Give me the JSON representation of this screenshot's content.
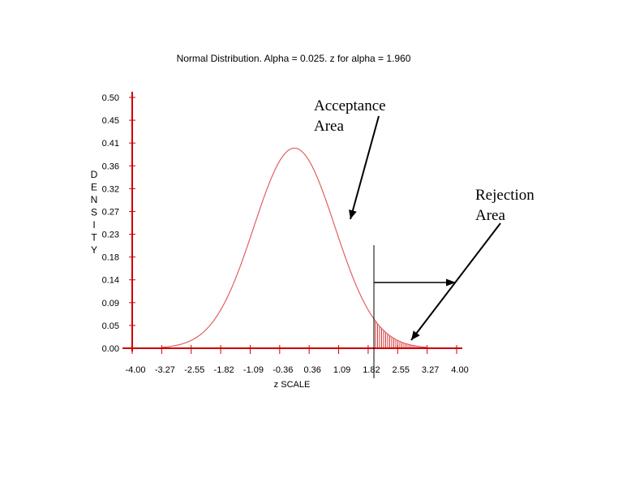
{
  "chart_data": {
    "type": "line",
    "title": "Normal Distribution. Alpha = 0.025. z for alpha = 1.960",
    "xlabel": "z SCALE",
    "ylabel": "DENSITY",
    "xlim": [
      -4.0,
      4.0
    ],
    "ylim": [
      0.0,
      0.5
    ],
    "x_ticks": [
      "-4.00",
      "-3.27",
      "-2.55",
      "-1.82",
      "-1.09",
      "-0.36",
      "0.36",
      "1.09",
      "1.82",
      "2.55",
      "3.27",
      "4.00"
    ],
    "y_ticks": [
      "0.50",
      "0.45",
      "0.41",
      "0.36",
      "0.32",
      "0.27",
      "0.23",
      "0.18",
      "0.14",
      "0.09",
      "0.05",
      "0.00"
    ],
    "series": [
      {
        "mean": 0,
        "sd": 1,
        "x_range": [
          -3.27,
          3.27
        ]
      }
    ],
    "critical_z": 1.96,
    "shaded_region": [
      1.96,
      3.27
    ],
    "annotations": [
      {
        "id": "acceptance",
        "lines": [
          "Acceptance",
          "Area"
        ]
      },
      {
        "id": "rejection",
        "lines": [
          "Rejection",
          "Area"
        ]
      }
    ],
    "grid": false,
    "colors": {
      "curve": "#e06060",
      "axis": "#cc0000",
      "hatch": "#cc0000",
      "ink": "#000000"
    }
  }
}
